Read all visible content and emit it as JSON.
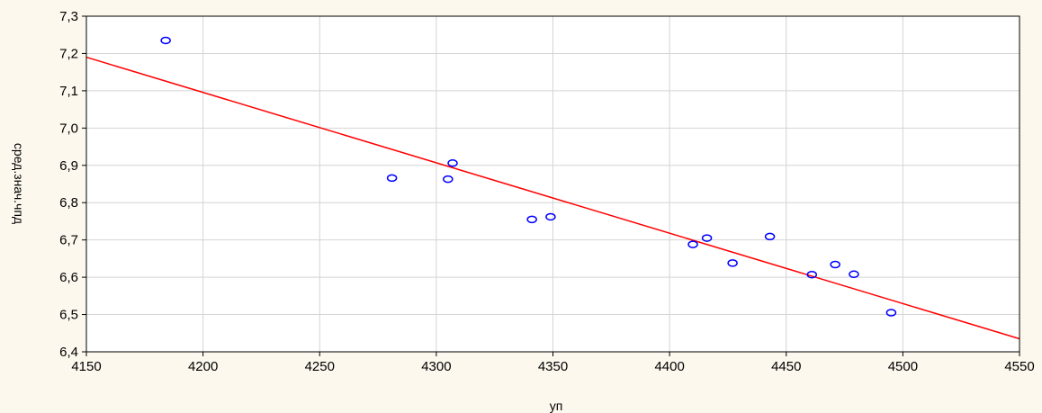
{
  "chart_data": {
    "type": "scatter",
    "xlabel": "уп",
    "ylabel": "сред.знач.чпд",
    "xlim": [
      4150,
      4550
    ],
    "ylim": [
      6.4,
      7.3
    ],
    "x_ticks": [
      {
        "value": 4150,
        "label": "4150"
      },
      {
        "value": 4200,
        "label": "4200"
      },
      {
        "value": 4250,
        "label": "4250"
      },
      {
        "value": 4300,
        "label": "4300"
      },
      {
        "value": 4350,
        "label": "4350"
      },
      {
        "value": 4400,
        "label": "4400"
      },
      {
        "value": 4450,
        "label": "4450"
      },
      {
        "value": 4500,
        "label": "4500"
      },
      {
        "value": 4550,
        "label": "4550"
      }
    ],
    "y_ticks": [
      {
        "value": 6.4,
        "label": "6,4"
      },
      {
        "value": 6.5,
        "label": "6,5"
      },
      {
        "value": 6.6,
        "label": "6,6"
      },
      {
        "value": 6.7,
        "label": "6,7"
      },
      {
        "value": 6.8,
        "label": "6,8"
      },
      {
        "value": 6.9,
        "label": "6,9"
      },
      {
        "value": 7.0,
        "label": "7,0"
      },
      {
        "value": 7.1,
        "label": "7,1"
      },
      {
        "value": 7.2,
        "label": "7,2"
      },
      {
        "value": 7.3,
        "label": "7,3"
      }
    ],
    "grid": true,
    "points": [
      {
        "x": 4184,
        "y": 7.235
      },
      {
        "x": 4281,
        "y": 6.866
      },
      {
        "x": 4305,
        "y": 6.863
      },
      {
        "x": 4307,
        "y": 6.906
      },
      {
        "x": 4341,
        "y": 6.755
      },
      {
        "x": 4349,
        "y": 6.762
      },
      {
        "x": 4410,
        "y": 6.688
      },
      {
        "x": 4416,
        "y": 6.705
      },
      {
        "x": 4427,
        "y": 6.638
      },
      {
        "x": 4443,
        "y": 6.709
      },
      {
        "x": 4461,
        "y": 6.607
      },
      {
        "x": 4471,
        "y": 6.634
      },
      {
        "x": 4479,
        "y": 6.608
      },
      {
        "x": 4495,
        "y": 6.505
      }
    ],
    "fit_line": {
      "x": [
        4150,
        4550
      ],
      "y": [
        7.19,
        6.435
      ]
    },
    "colors": {
      "points": "#0000ff",
      "fit_line": "#ff0000",
      "grid": "#d4d4d4",
      "background": "#fdf8ee",
      "plot_background": "#ffffff"
    }
  }
}
